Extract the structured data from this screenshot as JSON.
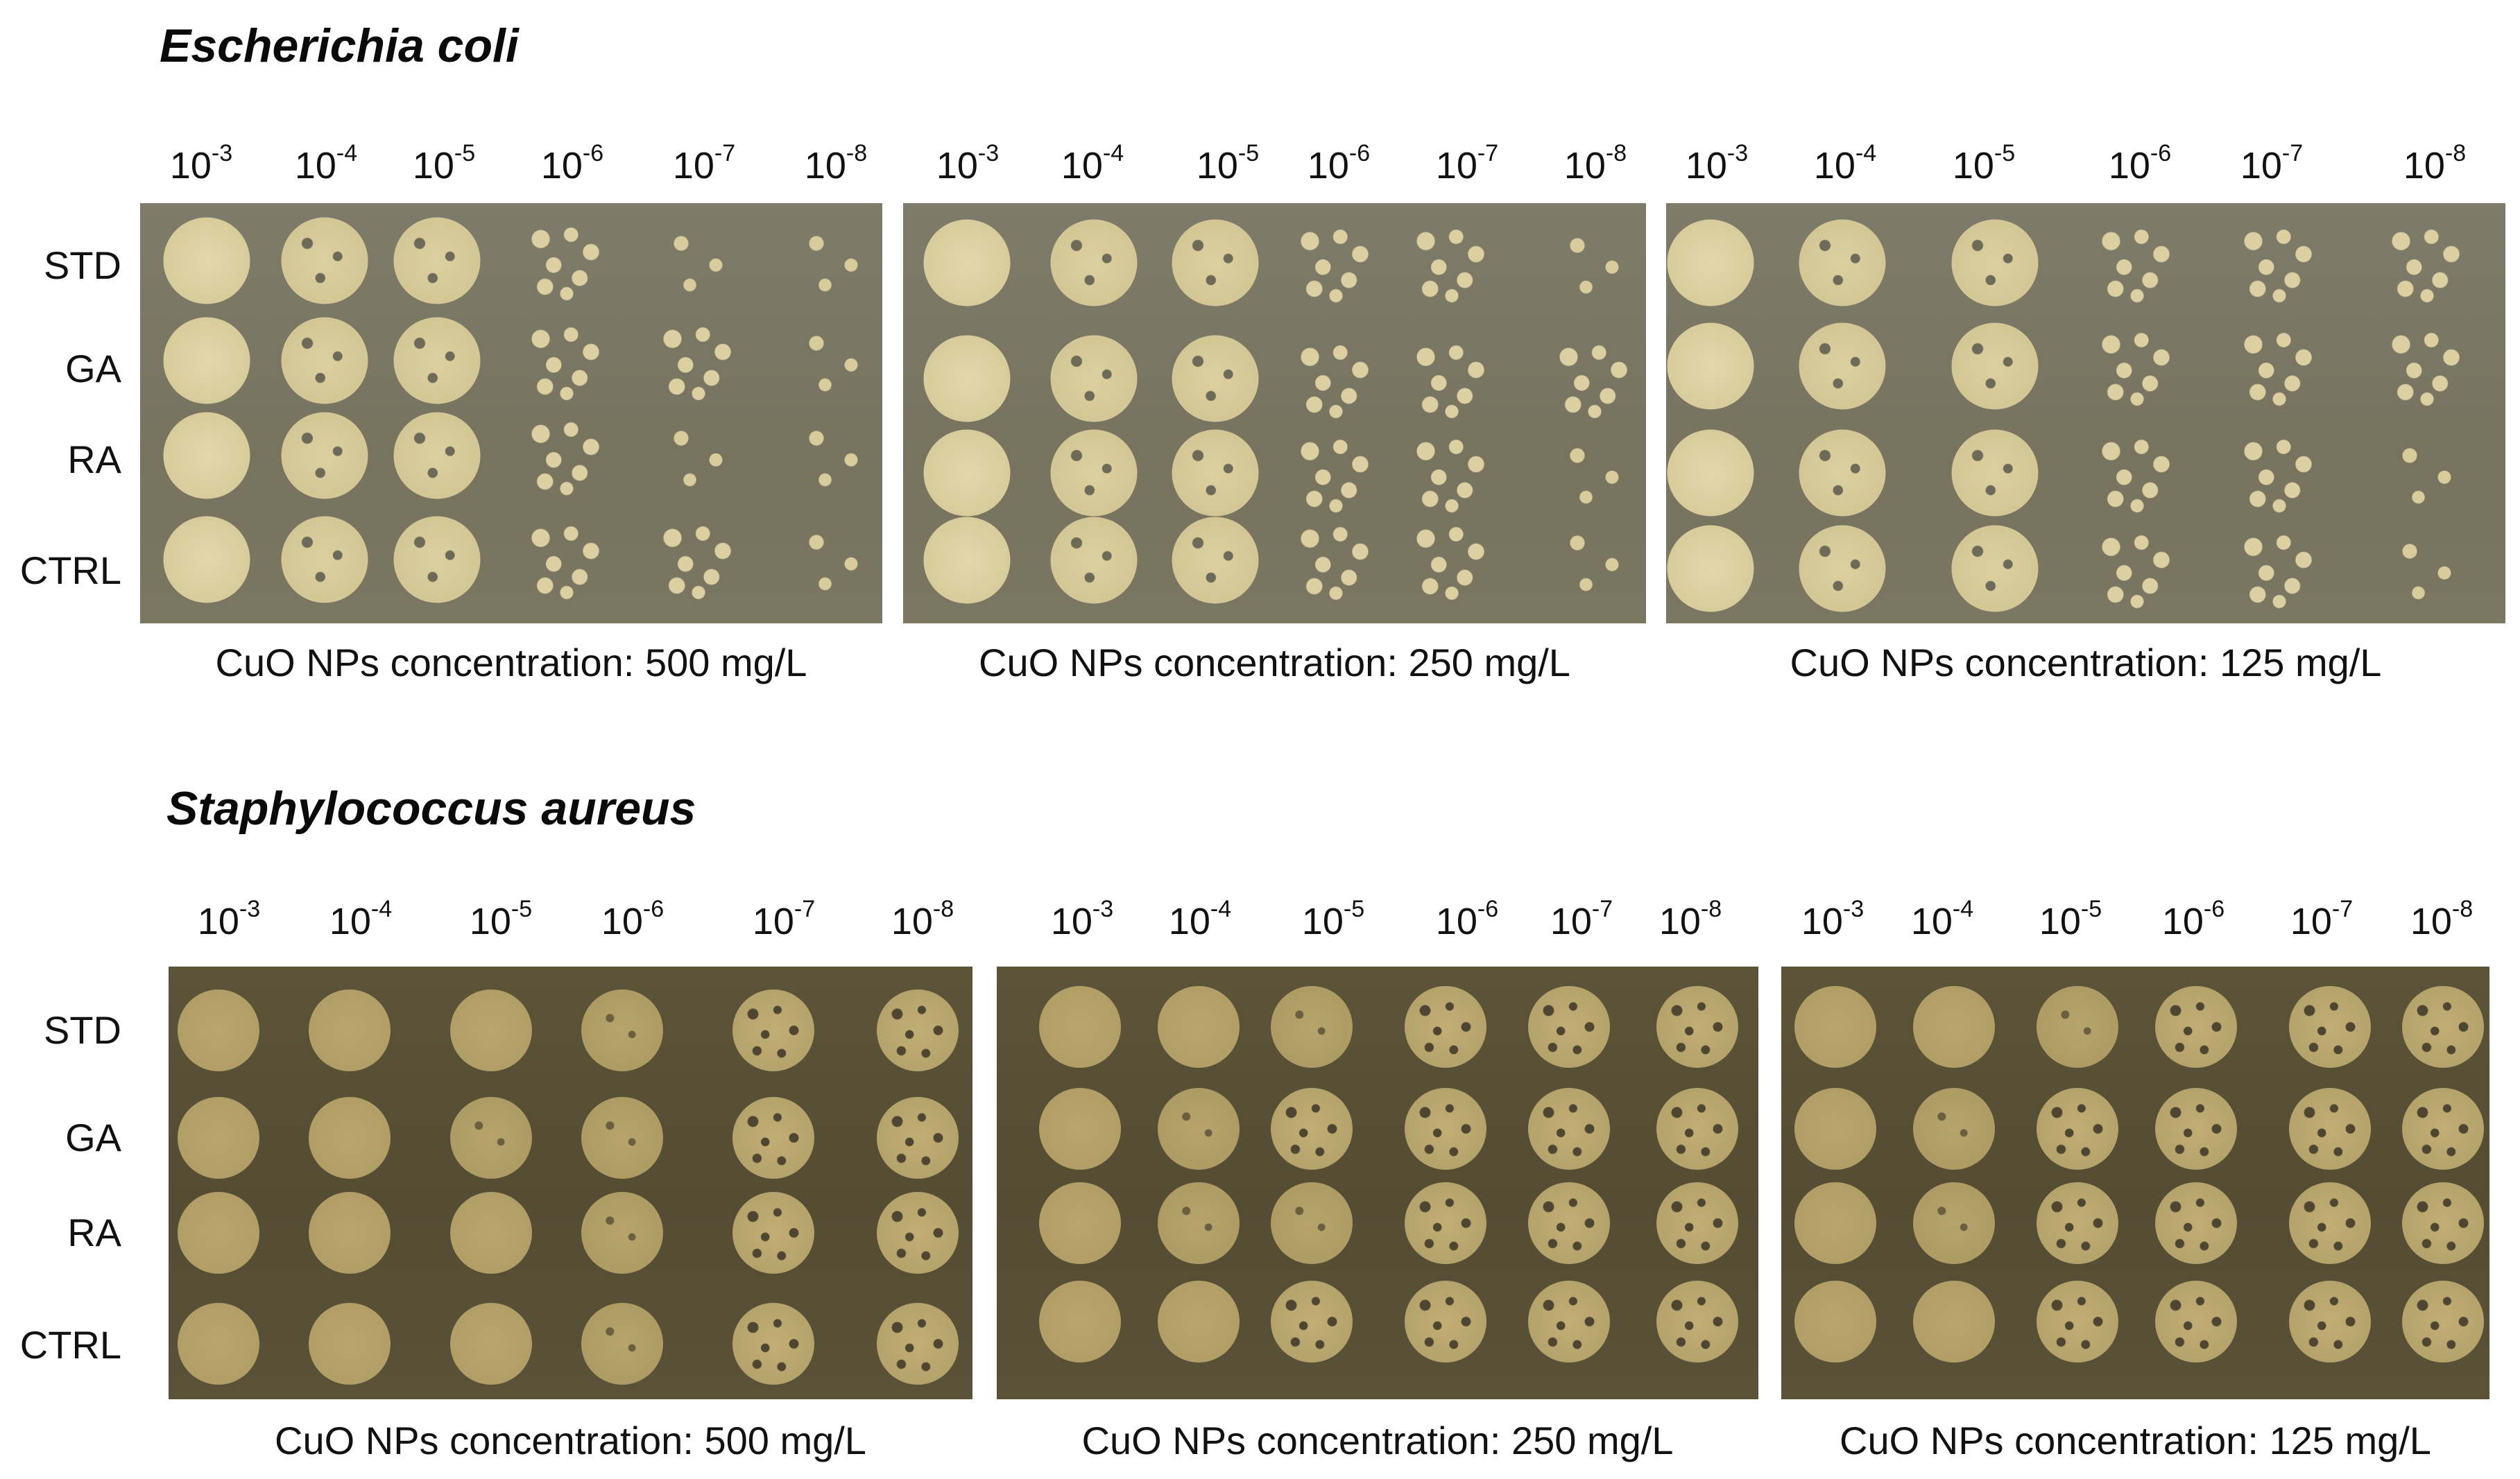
{
  "figure": {
    "sections": [
      {
        "id": "ecoli",
        "title": "Escherichia coli",
        "plates": [
          {
            "concentration_caption": "CuO NPs concentration: 500 mg/L",
            "dilutions": [
              "10-3",
              "10-4",
              "10-5",
              "10-6",
              "10-7",
              "10-8"
            ]
          },
          {
            "concentration_caption": "CuO NPs concentration: 250 mg/L",
            "dilutions": [
              "10-3",
              "10-4",
              "10-5",
              "10-6",
              "10-7",
              "10-8"
            ]
          },
          {
            "concentration_caption": "CuO NPs concentration: 125 mg/L",
            "dilutions": [
              "10-3",
              "10-4",
              "10-5",
              "10-6",
              "10-7",
              "10-8"
            ]
          }
        ],
        "row_labels": [
          "STD",
          "GA",
          "RA",
          "CTRL"
        ]
      },
      {
        "id": "saureus",
        "title": "Staphylococcus aureus",
        "plates": [
          {
            "concentration_caption": "CuO NPs concentration: 500 mg/L",
            "dilutions": [
              "10-3",
              "10-4",
              "10-5",
              "10-6",
              "10-7",
              "10-8"
            ]
          },
          {
            "concentration_caption": "CuO NPs concentration: 250 mg/L",
            "dilutions": [
              "10-3",
              "10-4",
              "10-5",
              "10-6",
              "10-7",
              "10-8"
            ]
          },
          {
            "concentration_caption": "CuO NPs concentration: 125 mg/L",
            "dilutions": [
              "10-3",
              "10-4",
              "10-5",
              "10-6",
              "10-7",
              "10-8"
            ]
          }
        ],
        "row_labels": [
          "STD",
          "GA",
          "RA",
          "CTRL"
        ]
      }
    ],
    "dilution_base": "10",
    "dilution_exponents": [
      "-3",
      "-4",
      "-5",
      "-6",
      "-7",
      "-8"
    ],
    "colors": {
      "ecoli_agar": "#7b7865",
      "ecoli_colony": "#ddd1a1",
      "saureus_agar": "#585036",
      "saureus_colony": "#b4a26a"
    }
  }
}
